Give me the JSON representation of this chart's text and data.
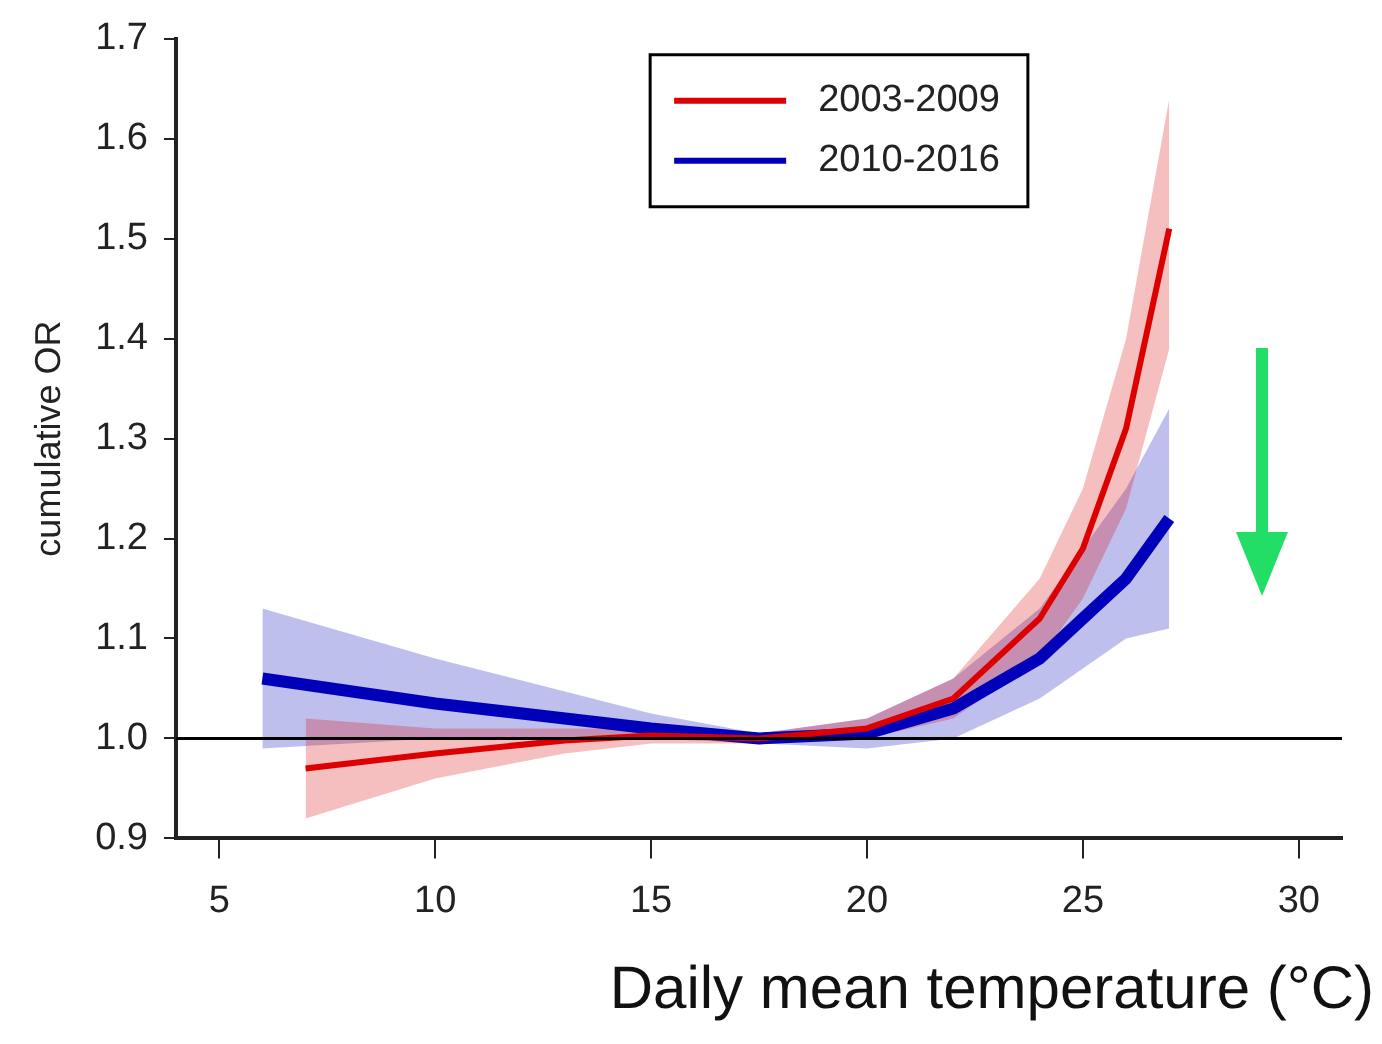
{
  "chart_data": {
    "type": "line",
    "xlabel": "Daily mean temperature (°C)",
    "ylabel": "cumulative OR",
    "xlim": [
      4,
      31
    ],
    "xticks": [
      5,
      10,
      15,
      20,
      25,
      30
    ],
    "ylim": [
      0.9,
      1.7
    ],
    "yticks": [
      0.9,
      {
        "value": 1.0,
        "label": "1.0"
      },
      1.1,
      1.2,
      1.3,
      1.4,
      1.5,
      1.6,
      1.7
    ],
    "legend": "top",
    "grid": false,
    "marker": "none",
    "line_style": "solid",
    "ref_lines": [
      {
        "axis": "y",
        "value": 1.0,
        "color": "#000000"
      }
    ],
    "series": [
      {
        "name": "2003-2009",
        "color": "#dd0000",
        "x": [
          7,
          10,
          13,
          15,
          17.5,
          20,
          22,
          24,
          25,
          26,
          27
        ],
        "values": [
          0.97,
          0.985,
          0.998,
          1.003,
          1.0,
          1.01,
          1.04,
          1.12,
          1.19,
          1.31,
          1.51
        ],
        "lower": [
          0.92,
          0.96,
          0.985,
          0.995,
          0.995,
          1.0,
          1.02,
          1.08,
          1.14,
          1.23,
          1.39
        ],
        "upper": [
          1.02,
          1.01,
          1.01,
          1.01,
          1.005,
          1.02,
          1.06,
          1.16,
          1.25,
          1.4,
          1.64
        ]
      },
      {
        "name": "2010-2016",
        "color": "#0000bb",
        "x": [
          6,
          10,
          15,
          17.5,
          20,
          22,
          24,
          25,
          26,
          27
        ],
        "values": [
          1.06,
          1.035,
          1.01,
          1.0,
          1.005,
          1.03,
          1.08,
          1.12,
          1.16,
          1.22
        ],
        "lower": [
          0.99,
          1.0,
          1.0,
          0.995,
          0.99,
          1.0,
          1.04,
          1.07,
          1.1,
          1.11
        ],
        "upper": [
          1.13,
          1.08,
          1.025,
          1.005,
          1.02,
          1.06,
          1.13,
          1.19,
          1.25,
          1.33
        ]
      }
    ]
  }
}
